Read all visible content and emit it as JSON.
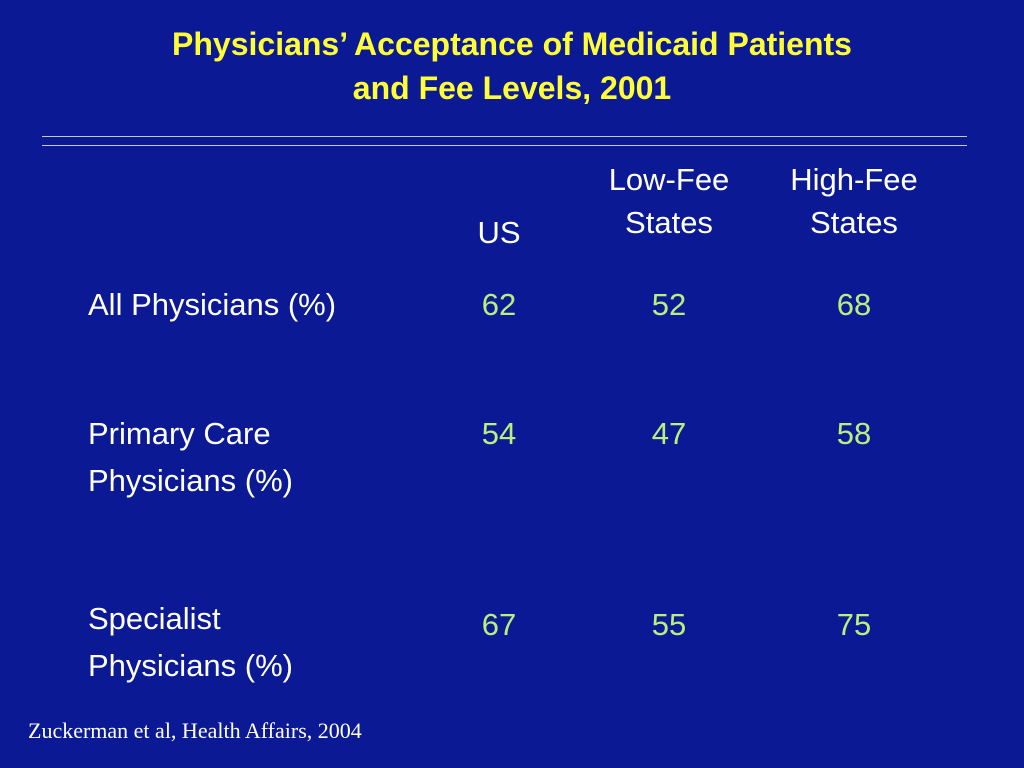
{
  "title": {
    "line1": "Physicians’ Acceptance of Medicaid Patients",
    "line2": "and Fee Levels, 2001"
  },
  "columns": {
    "us": "US",
    "low_fee": [
      "Low-Fee",
      "States"
    ],
    "high_fee": [
      "High-Fee",
      "States"
    ]
  },
  "rows": [
    {
      "label": [
        "All Physicians (%)"
      ],
      "us": "62",
      "low_fee": "52",
      "high_fee": "68"
    },
    {
      "label": [
        "Primary Care",
        "Physicians (%)"
      ],
      "us": "54",
      "low_fee": "47",
      "high_fee": "58"
    },
    {
      "label": [
        "Specialist",
        "Physicians (%)"
      ],
      "us": "67",
      "low_fee": "55",
      "high_fee": "75"
    }
  ],
  "source": "Zuckerman et al, Health Affairs, 2004",
  "colors": {
    "background": "#0b1a94",
    "title": "#ffff33",
    "values": "#b8f07c",
    "text": "#ffffff"
  }
}
